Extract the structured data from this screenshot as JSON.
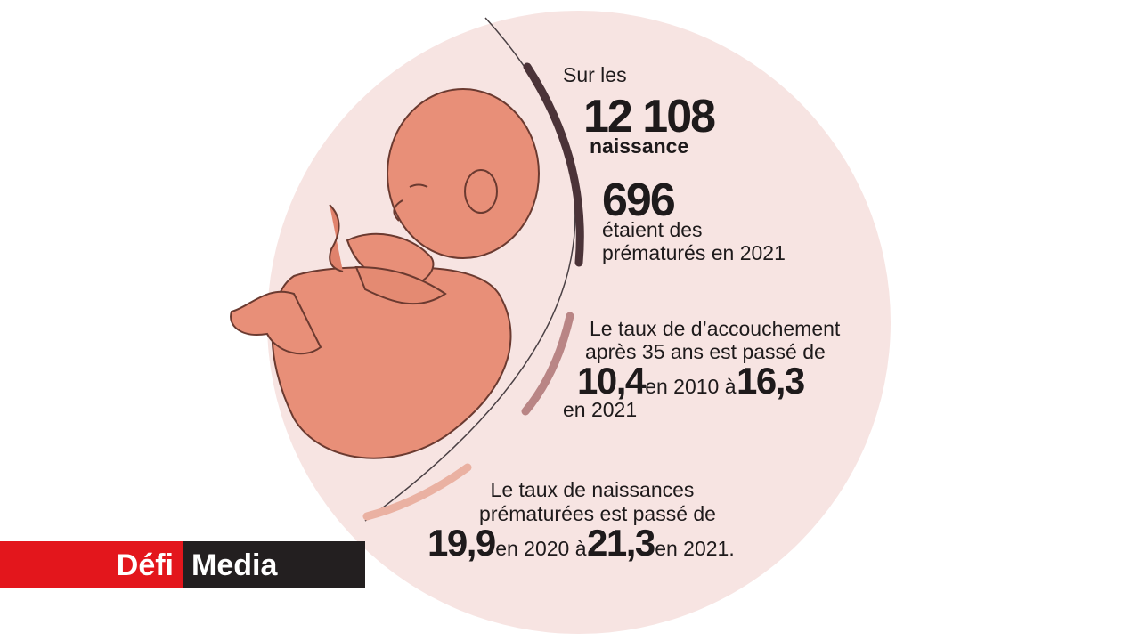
{
  "intro": "Sur les",
  "births": {
    "number": "12 108",
    "label": "naissance"
  },
  "premature": {
    "number": "696",
    "lines": [
      "étaient des",
      "prématurés en 2021"
    ]
  },
  "late_delivery": {
    "lines": [
      "Le taux de d’accouchement",
      "après 35 ans est passé de"
    ],
    "from": "10,4",
    "from_text": "en 2010 à",
    "to": "16,3",
    "to_text": "en 2021"
  },
  "premature_rate": {
    "lines": [
      "Le taux de naissances",
      "prématurées est passé de"
    ],
    "from": "19,9",
    "from_text": "en 2020 à",
    "to": "21,3",
    "to_text": "en 2021."
  },
  "logo": {
    "brand": "Défi",
    "name": "Media"
  }
}
